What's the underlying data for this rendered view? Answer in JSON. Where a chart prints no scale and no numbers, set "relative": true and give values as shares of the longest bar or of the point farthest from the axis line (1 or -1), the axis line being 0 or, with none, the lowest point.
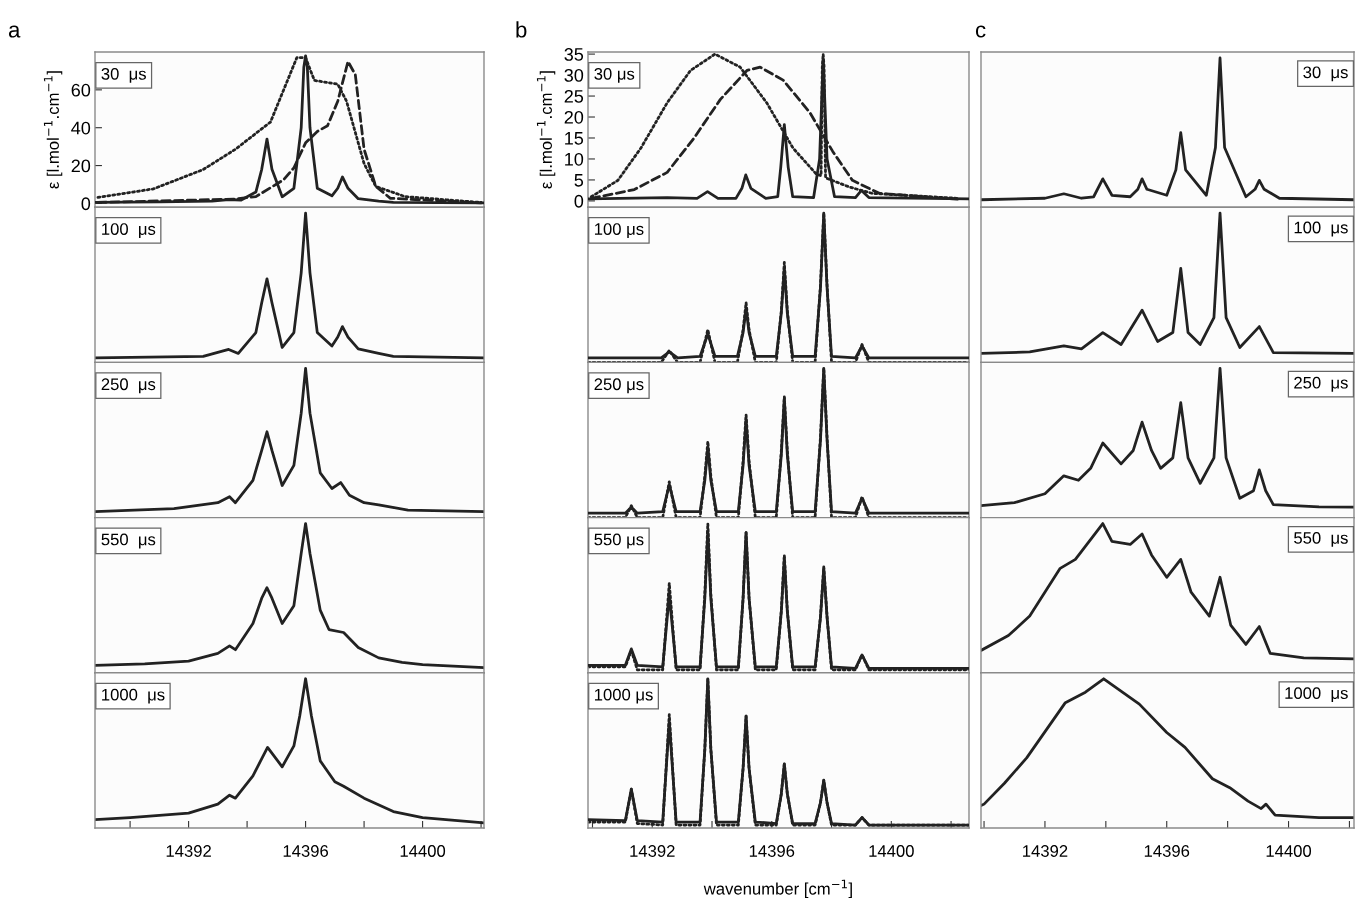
{
  "chart_data": [
    {
      "type": "line",
      "title": "a",
      "ylabel": "ε [l.mol$^{−1}$.cm$^{−1}$]",
      "xlim": [
        14388.8,
        14402.1
      ],
      "ylim": [
        -2,
        80
      ],
      "yticks": [
        0,
        20,
        40,
        60
      ],
      "tick_labels": "y",
      "annotations": [
        "30  μs"
      ],
      "series": [
        {
          "color": "#222222",
          "line_style": "dotted",
          "x": [
            14388.9,
            14390.8,
            14392.5,
            14393.6,
            14394.8,
            14395.7,
            14396.0,
            14396.3,
            14397.1,
            14397.4,
            14398.0,
            14398.4,
            14399.4,
            14402.0
          ],
          "values": [
            3.2,
            7.7,
            17.9,
            28.6,
            43,
            77,
            77,
            65,
            63,
            54,
            21,
            9,
            3.6,
            0.5
          ]
        },
        {
          "color": "#222222",
          "line_style": "dashed",
          "x": [
            14388.9,
            14393.6,
            14394.3,
            14395.25,
            14395.6,
            14396.0,
            14396.4,
            14396.75,
            14397.1,
            14397.45,
            14397.7,
            14398.0,
            14398.4,
            14398.9,
            14402.0
          ],
          "values": [
            0.5,
            2.3,
            3.6,
            12.5,
            18.8,
            32,
            38,
            41,
            54,
            75,
            68,
            28.6,
            9,
            2.7,
            0.3
          ]
        },
        {
          "color": "#222222",
          "line_style": "solid",
          "x": [
            14388.8,
            14391,
            14392.8,
            14393.37,
            14393.8,
            14394.3,
            14394.5,
            14394.68,
            14394.85,
            14395.2,
            14395.6,
            14395.85,
            14395.94,
            14396.0,
            14396.06,
            14396.15,
            14396.4,
            14396.9,
            14397.1,
            14397.26,
            14397.45,
            14397.8,
            14398.5,
            14399,
            14402.1
          ],
          "values": [
            0.5,
            0.8,
            1.2,
            2,
            1.8,
            6,
            18,
            34,
            18,
            3.5,
            8,
            40,
            72,
            78,
            72,
            40,
            8,
            4,
            8,
            14,
            8,
            2.5,
            1.2,
            0.5,
            0.3
          ]
        }
      ]
    },
    {
      "type": "line",
      "title": "b",
      "ylabel": "ε [l.mol$^{−1}$.cm$^{−1}$]",
      "xlim": [
        14389.85,
        14402.6
      ],
      "ylim": [
        -1.5,
        35.5
      ],
      "yticks": [
        0,
        5,
        10,
        15,
        20,
        25,
        30,
        35
      ],
      "tick_labels": "y",
      "annotations": [
        "30 μs"
      ],
      "series": [
        {
          "color": "#222222",
          "line_style": "dotted",
          "x": [
            14389.96,
            14390.85,
            14391.62,
            14392.5,
            14393.28,
            14394.1,
            14394.94,
            14395.83,
            14396.71,
            14397.49,
            14397.65,
            14397.69,
            14397.72,
            14397.75,
            14397.8,
            14398.6,
            14399.36,
            14402.25
          ],
          "values": [
            1,
            4.9,
            12.6,
            23.4,
            31.1,
            35,
            31.9,
            23.4,
            12.6,
            6.4,
            6,
            32,
            35,
            32,
            5.5,
            3.3,
            1.8,
            0.6
          ]
        },
        {
          "color": "#222222",
          "line_style": "dashed",
          "x": [
            14389.96,
            14391.4,
            14392.5,
            14393.39,
            14394.28,
            14395.17,
            14395.61,
            14396.38,
            14397.27,
            14398.04,
            14398.7,
            14399.6,
            14402.25
          ],
          "values": [
            0.6,
            2.7,
            6.8,
            14.9,
            24.2,
            31.1,
            31.9,
            28.8,
            21.1,
            11.8,
            4.9,
            1.8,
            0.4
          ]
        },
        {
          "color": "#222222",
          "line_style": "solid",
          "x": [
            14389.85,
            14392.5,
            14393.5,
            14393.85,
            14394.2,
            14394.8,
            14395.0,
            14395.13,
            14395.3,
            14395.8,
            14396.2,
            14396.3,
            14396.42,
            14396.55,
            14396.7,
            14397.4,
            14397.6,
            14397.72,
            14397.85,
            14398.1,
            14398.8,
            14399.0,
            14399.25,
            14402.6
          ],
          "values": [
            0.5,
            0.8,
            0.6,
            2.2,
            0.6,
            0.6,
            3,
            6.2,
            3,
            0.6,
            1,
            8,
            18.2,
            8,
            1,
            0.8,
            10,
            33.8,
            10,
            1,
            0.8,
            2.5,
            0.8,
            0.5
          ]
        }
      ]
    },
    {
      "type": "line",
      "title": "c",
      "relative": true,
      "xlim": [
        14389.9,
        14402.15
      ],
      "tick_labels": false,
      "annotations": [
        "30  μs"
      ],
      "series": [
        {
          "color": "#222222",
          "line_style": "solid",
          "x": [
            14389.9,
            14392.0,
            14392.62,
            14393.2,
            14393.6,
            14393.9,
            14394.2,
            14394.8,
            14395.05,
            14395.19,
            14395.35,
            14396.0,
            14396.3,
            14396.46,
            14396.62,
            14397.3,
            14397.6,
            14397.75,
            14397.9,
            14398.6,
            14398.9,
            14399.04,
            14399.2,
            14399.7,
            14402.15
          ],
          "values": [
            0.05,
            0.06,
            0.09,
            0.06,
            0.07,
            0.19,
            0.08,
            0.07,
            0.12,
            0.19,
            0.12,
            0.08,
            0.25,
            0.5,
            0.25,
            0.08,
            0.4,
            1,
            0.4,
            0.07,
            0.12,
            0.18,
            0.12,
            0.06,
            0.05
          ]
        }
      ]
    },
    {
      "type": "line",
      "relative": true,
      "xlim": [
        14388.8,
        14402.1
      ],
      "tick_labels": false,
      "annotations": [
        "100  μs"
      ],
      "series": [
        {
          "color": "#222222",
          "line_style": "solid",
          "x": [
            14388.8,
            14392.5,
            14393.37,
            14393.7,
            14394.3,
            14394.5,
            14394.68,
            14394.85,
            14395.2,
            14395.6,
            14395.85,
            14396.0,
            14396.15,
            14396.4,
            14396.9,
            14397.1,
            14397.26,
            14397.45,
            14397.8,
            14398.5,
            14399.0,
            14402.1
          ],
          "values": [
            0.03,
            0.04,
            0.087,
            0.06,
            0.2,
            0.4,
            0.56,
            0.4,
            0.1,
            0.2,
            0.6,
            1,
            0.6,
            0.2,
            0.11,
            0.17,
            0.24,
            0.17,
            0.09,
            0.06,
            0.04,
            0.03
          ]
        }
      ]
    },
    {
      "type": "line",
      "relative": true,
      "xlim": [
        14389.85,
        14402.6
      ],
      "tick_labels": false,
      "annotations": [
        "100 μs"
      ],
      "series": [
        {
          "color": "#222222",
          "line_style": "dotted",
          "x": [
            14389.85,
            14392.3,
            14392.57,
            14392.85,
            14393.6,
            14393.86,
            14394.1,
            14394.85,
            14395.04,
            14395.14,
            14395.24,
            14395.45,
            14396.15,
            14396.32,
            14396.42,
            14396.52,
            14396.7,
            14397.45,
            14397.63,
            14397.74,
            14397.85,
            14398.0,
            14398.8,
            14399.02,
            14399.25,
            14402.6
          ],
          "values": [
            0,
            0,
            0.08,
            0,
            0,
            0.22,
            0,
            0,
            0.22,
            0.4,
            0.22,
            0,
            0,
            0.35,
            0.67,
            0.35,
            0,
            0,
            0.52,
            1,
            0.52,
            0,
            0,
            0.12,
            0,
            0
          ]
        },
        {
          "color": "#222222",
          "line_style": "solid",
          "x": [
            14389.85,
            14392.3,
            14392.57,
            14392.85,
            14393.6,
            14393.86,
            14394.1,
            14394.85,
            14395.04,
            14395.14,
            14395.24,
            14395.45,
            14396.15,
            14396.32,
            14396.42,
            14396.52,
            14396.7,
            14397.45,
            14397.63,
            14397.74,
            14397.85,
            14398.0,
            14398.8,
            14399.02,
            14399.25,
            14402.6
          ],
          "values": [
            0.03,
            0.03,
            0.07,
            0.03,
            0.04,
            0.19,
            0.04,
            0.04,
            0.2,
            0.36,
            0.2,
            0.04,
            0.04,
            0.33,
            0.63,
            0.33,
            0.04,
            0.04,
            0.5,
            1,
            0.5,
            0.04,
            0.03,
            0.11,
            0.03,
            0.03
          ]
        }
      ]
    },
    {
      "type": "line",
      "relative": true,
      "xlim": [
        14389.9,
        14402.15
      ],
      "tick_labels": false,
      "annotations": [
        "100  μs"
      ],
      "series": [
        {
          "color": "#222222",
          "line_style": "solid",
          "x": [
            14389.9,
            14391.5,
            14392.62,
            14393.2,
            14393.9,
            14394.5,
            14395.19,
            14395.7,
            14396.2,
            14396.46,
            14396.7,
            14397.1,
            14397.55,
            14397.75,
            14397.95,
            14398.4,
            14399.04,
            14399.5,
            14402.15
          ],
          "values": [
            0.06,
            0.07,
            0.11,
            0.09,
            0.2,
            0.12,
            0.35,
            0.14,
            0.2,
            0.63,
            0.2,
            0.12,
            0.3,
            1,
            0.3,
            0.1,
            0.24,
            0.066,
            0.06
          ]
        }
      ]
    },
    {
      "type": "line",
      "relative": true,
      "xlim": [
        14388.8,
        14402.1
      ],
      "tick_labels": false,
      "annotations": [
        "250  μs"
      ],
      "series": [
        {
          "color": "#222222",
          "line_style": "solid",
          "x": [
            14388.8,
            14391.5,
            14393.0,
            14393.4,
            14393.6,
            14394.2,
            14394.5,
            14394.68,
            14394.85,
            14395.2,
            14395.6,
            14395.85,
            14396.0,
            14396.15,
            14396.5,
            14396.9,
            14397.2,
            14397.5,
            14398.0,
            14398.5,
            14399.5,
            14402.1
          ],
          "values": [
            0.04,
            0.06,
            0.1,
            0.14,
            0.1,
            0.25,
            0.45,
            0.575,
            0.45,
            0.215,
            0.35,
            0.7,
            1,
            0.7,
            0.3,
            0.195,
            0.235,
            0.15,
            0.1,
            0.086,
            0.05,
            0.04
          ]
        }
      ]
    },
    {
      "type": "line",
      "relative": true,
      "xlim": [
        14389.85,
        14402.6
      ],
      "tick_labels": false,
      "annotations": [
        "250 μs"
      ],
      "series": [
        {
          "color": "#222222",
          "line_style": "dotted",
          "x": [
            14389.85,
            14391.1,
            14391.3,
            14391.5,
            14392.35,
            14392.57,
            14392.8,
            14393.6,
            14393.76,
            14393.86,
            14393.96,
            14394.15,
            14394.88,
            14395.04,
            14395.14,
            14395.24,
            14395.45,
            14396.15,
            14396.32,
            14396.42,
            14396.52,
            14396.7,
            14397.45,
            14397.63,
            14397.74,
            14397.85,
            14398.0,
            14398.8,
            14399.02,
            14399.25,
            14402.6
          ],
          "values": [
            0,
            0,
            0.08,
            0,
            0,
            0.24,
            0,
            0,
            0.28,
            0.51,
            0.28,
            0,
            0,
            0.38,
            0.69,
            0.38,
            0,
            0,
            0.45,
            0.81,
            0.45,
            0,
            0,
            0.54,
            1,
            0.54,
            0,
            0,
            0.14,
            0,
            0
          ]
        },
        {
          "color": "#222222",
          "line_style": "solid",
          "x": [
            14389.85,
            14391.1,
            14391.3,
            14391.5,
            14392.35,
            14392.57,
            14392.8,
            14393.6,
            14393.76,
            14393.86,
            14393.96,
            14394.15,
            14394.88,
            14395.04,
            14395.14,
            14395.24,
            14395.45,
            14396.15,
            14396.32,
            14396.42,
            14396.52,
            14396.7,
            14397.45,
            14397.63,
            14397.74,
            14397.85,
            14398.0,
            14398.8,
            14399.02,
            14399.25,
            14402.6
          ],
          "values": [
            0.03,
            0.03,
            0.07,
            0.03,
            0.04,
            0.22,
            0.04,
            0.04,
            0.25,
            0.47,
            0.25,
            0.04,
            0.04,
            0.35,
            0.66,
            0.35,
            0.04,
            0.04,
            0.42,
            0.8,
            0.42,
            0.04,
            0.04,
            0.52,
            1,
            0.52,
            0.04,
            0.03,
            0.13,
            0.03,
            0.03
          ]
        }
      ]
    },
    {
      "type": "line",
      "relative": true,
      "xlim": [
        14389.9,
        14402.15
      ],
      "tick_labels": false,
      "annotations": [
        "250  μs"
      ],
      "series": [
        {
          "color": "#222222",
          "line_style": "solid",
          "x": [
            14389.9,
            14391.0,
            14392.0,
            14392.62,
            14393.1,
            14393.5,
            14393.9,
            14394.5,
            14394.9,
            14395.19,
            14395.5,
            14395.8,
            14396.2,
            14396.46,
            14396.7,
            14397.1,
            14397.55,
            14397.75,
            14397.95,
            14398.4,
            14398.85,
            14399.04,
            14399.25,
            14399.5,
            14401.0,
            14402.15
          ],
          "values": [
            0.08,
            0.1,
            0.16,
            0.28,
            0.25,
            0.33,
            0.5,
            0.36,
            0.45,
            0.64,
            0.45,
            0.33,
            0.4,
            0.77,
            0.4,
            0.23,
            0.4,
            1,
            0.4,
            0.13,
            0.18,
            0.32,
            0.18,
            0.087,
            0.072,
            0.07
          ]
        }
      ]
    },
    {
      "type": "line",
      "relative": true,
      "xlim": [
        14388.8,
        14402.1
      ],
      "tick_labels": false,
      "annotations": [
        "550  μs"
      ],
      "series": [
        {
          "color": "#222222",
          "line_style": "solid",
          "x": [
            14388.8,
            14390.5,
            14392.0,
            14393.0,
            14393.4,
            14393.6,
            14394.2,
            14394.5,
            14394.68,
            14394.85,
            14395.2,
            14395.6,
            14395.85,
            14396.0,
            14396.15,
            14396.5,
            14396.8,
            14397.3,
            14397.8,
            14398.5,
            14399.3,
            14400.0,
            14402.1
          ],
          "values": [
            0.05,
            0.06,
            0.078,
            0.13,
            0.18,
            0.155,
            0.33,
            0.5,
            0.57,
            0.5,
            0.33,
            0.45,
            0.8,
            1,
            0.8,
            0.42,
            0.29,
            0.27,
            0.17,
            0.1,
            0.07,
            0.055,
            0.035
          ]
        }
      ]
    },
    {
      "type": "line",
      "relative": true,
      "xlim": [
        14389.85,
        14402.6
      ],
      "tick_labels": false,
      "annotations": [
        "550 μs"
      ],
      "series": [
        {
          "color": "#222222",
          "line_style": "dotted",
          "x": [
            14389.85,
            14391.1,
            14391.3,
            14391.5,
            14392.35,
            14392.57,
            14392.8,
            14393.6,
            14393.76,
            14393.86,
            14393.96,
            14394.15,
            14394.88,
            14395.04,
            14395.14,
            14395.24,
            14395.45,
            14396.15,
            14396.32,
            14396.42,
            14396.52,
            14396.7,
            14397.45,
            14397.63,
            14397.74,
            14397.85,
            14398.0,
            14398.8,
            14399.02,
            14399.25,
            14402.6
          ],
          "values": [
            0.04,
            0.04,
            0.15,
            0.02,
            0.02,
            0.6,
            0.02,
            0.02,
            0.53,
            1,
            0.53,
            0.02,
            0.02,
            0.5,
            0.94,
            0.5,
            0.02,
            0.02,
            0.42,
            0.79,
            0.42,
            0.02,
            0.02,
            0.38,
            0.71,
            0.38,
            0.02,
            0.02,
            0.12,
            0.02,
            0.02
          ]
        },
        {
          "color": "#222222",
          "line_style": "solid",
          "x": [
            14389.85,
            14391.1,
            14391.3,
            14391.5,
            14392.35,
            14392.57,
            14392.8,
            14393.6,
            14393.76,
            14393.86,
            14393.96,
            14394.15,
            14394.88,
            14395.04,
            14395.14,
            14395.24,
            14395.45,
            14396.15,
            14396.32,
            14396.42,
            14396.52,
            14396.7,
            14397.45,
            14397.63,
            14397.74,
            14397.85,
            14398.0,
            14398.8,
            14399.02,
            14399.25,
            14402.6
          ],
          "values": [
            0.05,
            0.05,
            0.16,
            0.05,
            0.04,
            0.52,
            0.04,
            0.04,
            0.5,
            0.95,
            0.5,
            0.04,
            0.04,
            0.5,
            0.94,
            0.5,
            0.04,
            0.04,
            0.41,
            0.77,
            0.41,
            0.04,
            0.04,
            0.37,
            0.7,
            0.37,
            0.04,
            0.03,
            0.12,
            0.03,
            0.03
          ]
        }
      ]
    },
    {
      "type": "line",
      "relative": true,
      "xlim": [
        14389.9,
        14402.15
      ],
      "tick_labels": false,
      "annotations": [
        "550  μs"
      ],
      "series": [
        {
          "color": "#222222",
          "line_style": "solid",
          "x": [
            14389.9,
            14390.8,
            14391.5,
            14392.5,
            14393.0,
            14393.9,
            14394.2,
            14394.8,
            14395.19,
            14395.5,
            14396.0,
            14396.46,
            14396.8,
            14397.4,
            14397.75,
            14398.1,
            14398.6,
            14399.04,
            14399.4,
            14400.5,
            14402.15
          ],
          "values": [
            0.15,
            0.25,
            0.38,
            0.7,
            0.76,
            1,
            0.88,
            0.86,
            0.93,
            0.79,
            0.64,
            0.76,
            0.54,
            0.38,
            0.64,
            0.32,
            0.19,
            0.31,
            0.13,
            0.1,
            0.094
          ]
        }
      ]
    },
    {
      "type": "line",
      "relative": true,
      "xlim": [
        14388.8,
        14402.1
      ],
      "xticks": [
        {
          "value": 14390,
          "label": null
        },
        14392,
        {
          "value": 14394,
          "label": null
        },
        14396,
        {
          "value": 14398,
          "label": null
        },
        14400,
        {
          "value": 14402,
          "label": null
        }
      ],
      "tick_labels": "x",
      "annotations": [
        "1000  μs"
      ],
      "series": [
        {
          "color": "#222222",
          "line_style": "solid",
          "x": [
            14388.8,
            14390.0,
            14392.0,
            14393.0,
            14393.4,
            14393.6,
            14394.2,
            14394.7,
            14395.2,
            14395.6,
            14395.8,
            14396.0,
            14396.2,
            14396.5,
            14397.0,
            14397.3,
            14398.0,
            14399.0,
            14400.0,
            14402.1
          ],
          "values": [
            0.056,
            0.07,
            0.1,
            0.16,
            0.22,
            0.2,
            0.35,
            0.54,
            0.41,
            0.55,
            0.75,
            1,
            0.75,
            0.45,
            0.31,
            0.28,
            0.2,
            0.11,
            0.07,
            0.034
          ]
        }
      ]
    },
    {
      "type": "line",
      "relative": true,
      "xlabel": "wavenumber [cm$^{−1}$]",
      "xlim": [
        14389.85,
        14402.6
      ],
      "xticks": [
        {
          "value": 14390,
          "label": null
        },
        14392,
        {
          "value": 14394,
          "label": null
        },
        14396,
        {
          "value": 14398,
          "label": null
        },
        14400,
        {
          "value": 14402,
          "label": null
        }
      ],
      "tick_labels": "x",
      "annotations": [
        "1000 μs"
      ],
      "series": [
        {
          "color": "#222222",
          "line_style": "dotted",
          "x": [
            14389.85,
            14391.1,
            14391.3,
            14391.5,
            14392.35,
            14392.57,
            14392.8,
            14393.6,
            14393.76,
            14393.86,
            14393.96,
            14394.15,
            14394.88,
            14395.04,
            14395.14,
            14395.24,
            14395.45,
            14396.15,
            14396.32,
            14396.42,
            14396.52,
            14396.7,
            14397.45,
            14397.63,
            14397.74,
            14397.85,
            14398.0,
            14398.8,
            14399.02,
            14399.25,
            14402.6
          ],
          "values": [
            0.04,
            0.04,
            0.26,
            0.03,
            0.02,
            0.76,
            0.02,
            0.02,
            0.53,
            1,
            0.53,
            0.02,
            0.02,
            0.4,
            0.75,
            0.4,
            0.02,
            0.02,
            0.23,
            0.43,
            0.23,
            0.02,
            0.02,
            0.17,
            0.32,
            0.17,
            0.02,
            0.02,
            0.07,
            0.02,
            0.02
          ]
        },
        {
          "color": "#222222",
          "line_style": "solid",
          "x": [
            14389.85,
            14391.1,
            14391.3,
            14391.5,
            14392.35,
            14392.57,
            14392.8,
            14393.6,
            14393.76,
            14393.86,
            14393.96,
            14394.15,
            14394.88,
            14395.04,
            14395.14,
            14395.24,
            14395.45,
            14396.15,
            14396.32,
            14396.42,
            14396.52,
            14396.7,
            14397.45,
            14397.63,
            14397.74,
            14397.85,
            14398.0,
            14398.8,
            14399.02,
            14399.25,
            14402.6
          ],
          "values": [
            0.056,
            0.05,
            0.26,
            0.05,
            0.04,
            0.71,
            0.04,
            0.04,
            0.53,
            1,
            0.53,
            0.04,
            0.04,
            0.4,
            0.75,
            0.4,
            0.04,
            0.03,
            0.23,
            0.43,
            0.23,
            0.03,
            0.03,
            0.17,
            0.32,
            0.17,
            0.03,
            0.02,
            0.07,
            0.02,
            0.02
          ]
        }
      ]
    },
    {
      "type": "line",
      "relative": true,
      "xlim": [
        14389.9,
        14402.15
      ],
      "xticks": [
        {
          "value": 14390,
          "label": null
        },
        14392,
        {
          "value": 14394,
          "label": null
        },
        14396,
        {
          "value": 14398,
          "label": null
        },
        14400,
        {
          "value": 14402,
          "label": null
        }
      ],
      "tick_labels": "x",
      "annotations": [
        "1000  μs"
      ],
      "series": [
        {
          "color": "#222222",
          "line_style": "solid",
          "x": [
            14389.9,
            14390.0,
            14390.67,
            14391.4,
            14392.67,
            14393.33,
            14393.93,
            14395.1,
            14396.0,
            14396.6,
            14397.5,
            14398.07,
            14398.67,
            14399.1,
            14399.26,
            14399.56,
            14401.0,
            14402.15
          ],
          "values": [
            0.15,
            0.16,
            0.3,
            0.47,
            0.84,
            0.91,
            1,
            0.83,
            0.64,
            0.54,
            0.33,
            0.27,
            0.18,
            0.13,
            0.16,
            0.086,
            0.07,
            0.07
          ]
        }
      ]
    }
  ]
}
